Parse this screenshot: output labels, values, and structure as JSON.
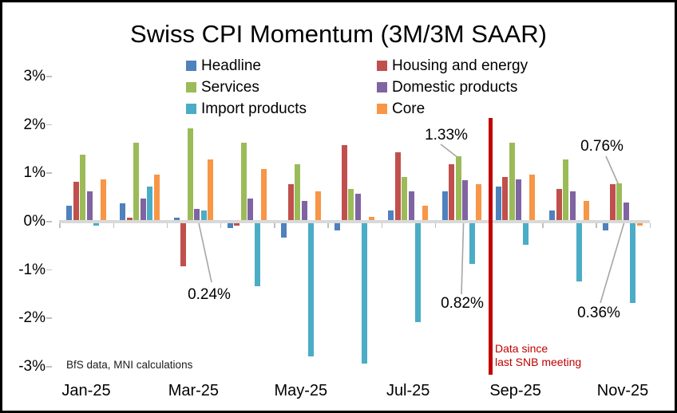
{
  "title": "Swiss CPI Momentum (3M/3M SAAR)",
  "footnote": "BfS data, MNI calculations",
  "event_line": {
    "label_line1": "Data since",
    "label_line2": "last SNB meeting",
    "color": "#C00000"
  },
  "colors": {
    "leader_line": "#A6A6A6",
    "baseline": "#D9D9D9",
    "tick": "#BFBFBF"
  },
  "y_axis": {
    "tick_labels": [
      "3%",
      "2%",
      "1%",
      "0%",
      "-1%",
      "-2%",
      "-3%"
    ],
    "max": 3,
    "min": -3
  },
  "x_axis": {
    "visible_labels": [
      "Jan-25",
      "Mar-25",
      "May-25",
      "Jul-25",
      "Sep-25",
      "Nov-25"
    ]
  },
  "chart_data": {
    "type": "bar",
    "title": "Swiss CPI Momentum (3M/3M SAAR)",
    "categories": [
      "Jan-25",
      "Feb-25",
      "Mar-25",
      "Apr-25",
      "May-25",
      "Jun-25",
      "Jul-25",
      "Aug-25",
      "Sep-25",
      "Oct-25",
      "Nov-25"
    ],
    "series": [
      {
        "name": "Headline",
        "color": "#4F81BD",
        "values": [
          0.3,
          0.35,
          0.05,
          -0.1,
          -0.3,
          -0.15,
          0.2,
          0.6,
          0.7,
          0.2,
          -0.15
        ]
      },
      {
        "name": "Housing and energy",
        "color": "#C0504D",
        "values": [
          0.8,
          0.05,
          -0.9,
          -0.05,
          0.75,
          1.55,
          1.4,
          1.15,
          0.9,
          0.65,
          0.75
        ]
      },
      {
        "name": "Services",
        "color": "#9BBB59",
        "values": [
          1.35,
          1.6,
          1.9,
          1.6,
          1.15,
          0.65,
          0.9,
          1.33,
          1.6,
          1.25,
          0.76
        ]
      },
      {
        "name": "Domestic products",
        "color": "#8064A2",
        "values": [
          0.6,
          0.45,
          0.24,
          0.45,
          0.4,
          0.55,
          0.6,
          0.82,
          0.85,
          0.6,
          0.36
        ]
      },
      {
        "name": "Import products",
        "color": "#4BACC6",
        "values": [
          -0.05,
          0.7,
          0.2,
          -1.3,
          -2.75,
          -2.9,
          -2.05,
          -0.85,
          -0.45,
          -1.2,
          -1.65
        ]
      },
      {
        "name": "Core",
        "color": "#F79646",
        "values": [
          0.85,
          0.95,
          1.25,
          1.05,
          0.6,
          0.07,
          0.3,
          0.75,
          0.95,
          0.4,
          -0.05
        ]
      }
    ],
    "ylim": [
      -3,
      3
    ],
    "y_unit": "%",
    "legend_position": "top",
    "grid": false
  },
  "annotations": [
    {
      "label": "0.24%",
      "month": "Mar-25",
      "series": "Domestic products",
      "value": 0.24
    },
    {
      "label": "1.33%",
      "month": "Aug-25",
      "series": "Services",
      "value": 1.33
    },
    {
      "label": "0.82%",
      "month": "Aug-25",
      "series": "Domestic products",
      "value": 0.82
    },
    {
      "label": "0.76%",
      "month": "Nov-25",
      "series": "Services",
      "value": 0.76
    },
    {
      "label": "0.36%",
      "month": "Nov-25",
      "series": "Domestic products",
      "value": 0.36
    }
  ]
}
